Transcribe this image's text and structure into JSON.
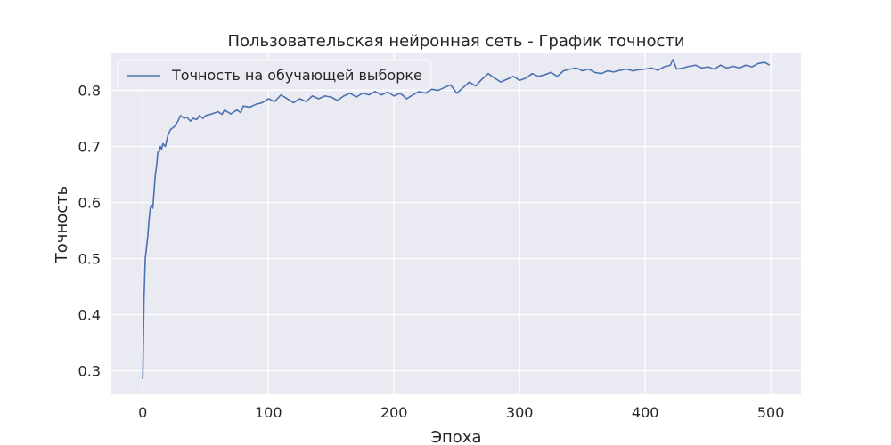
{
  "chart_data": {
    "type": "line",
    "title": "Пользовательская нейронная сеть - График точности",
    "xlabel": "Эпоха",
    "ylabel": "Точность",
    "xlim": [
      -25,
      524
    ],
    "ylim": [
      0.258,
      0.866
    ],
    "xticks": [
      0,
      100,
      200,
      300,
      400,
      500
    ],
    "yticks": [
      0.3,
      0.4,
      0.5,
      0.6,
      0.7,
      0.8
    ],
    "xtick_labels": [
      "0",
      "100",
      "200",
      "300",
      "400",
      "500"
    ],
    "ytick_labels": [
      "0.3",
      "0.4",
      "0.5",
      "0.6",
      "0.7",
      "0.8"
    ],
    "grid": true,
    "legend_position": "top-left",
    "background": "#eaeaf2",
    "grid_color": "#ffffff",
    "series": [
      {
        "name": "Точность на обучающей выборке",
        "color": "#4c72b0",
        "x": [
          0,
          1,
          2,
          3,
          4,
          5,
          6,
          7,
          8,
          9,
          10,
          11,
          12,
          13,
          14,
          15,
          16,
          18,
          20,
          22,
          25,
          28,
          30,
          33,
          35,
          38,
          40,
          43,
          45,
          48,
          50,
          55,
          60,
          63,
          65,
          70,
          75,
          78,
          80,
          85,
          90,
          95,
          100,
          105,
          110,
          115,
          120,
          125,
          130,
          135,
          140,
          145,
          150,
          155,
          160,
          165,
          170,
          175,
          180,
          185,
          190,
          195,
          200,
          205,
          210,
          215,
          220,
          225,
          230,
          235,
          240,
          245,
          250,
          255,
          260,
          265,
          270,
          275,
          280,
          285,
          290,
          295,
          300,
          305,
          310,
          315,
          320,
          325,
          330,
          335,
          340,
          345,
          350,
          355,
          360,
          365,
          370,
          375,
          380,
          385,
          390,
          395,
          400,
          405,
          410,
          415,
          420,
          422,
          425,
          430,
          435,
          440,
          445,
          450,
          455,
          460,
          465,
          470,
          475,
          480,
          485,
          490,
          495,
          499
        ],
        "values": [
          0.285,
          0.43,
          0.5,
          0.52,
          0.54,
          0.57,
          0.59,
          0.595,
          0.59,
          0.62,
          0.65,
          0.665,
          0.69,
          0.69,
          0.7,
          0.695,
          0.705,
          0.7,
          0.72,
          0.73,
          0.735,
          0.745,
          0.755,
          0.75,
          0.752,
          0.745,
          0.75,
          0.748,
          0.755,
          0.75,
          0.755,
          0.758,
          0.762,
          0.757,
          0.765,
          0.758,
          0.765,
          0.76,
          0.772,
          0.77,
          0.775,
          0.778,
          0.785,
          0.78,
          0.792,
          0.785,
          0.778,
          0.785,
          0.78,
          0.79,
          0.785,
          0.79,
          0.788,
          0.782,
          0.79,
          0.795,
          0.788,
          0.795,
          0.792,
          0.798,
          0.792,
          0.797,
          0.79,
          0.795,
          0.785,
          0.792,
          0.798,
          0.795,
          0.802,
          0.8,
          0.805,
          0.81,
          0.795,
          0.805,
          0.815,
          0.808,
          0.82,
          0.83,
          0.822,
          0.815,
          0.82,
          0.825,
          0.818,
          0.822,
          0.83,
          0.825,
          0.828,
          0.832,
          0.825,
          0.835,
          0.838,
          0.84,
          0.835,
          0.838,
          0.832,
          0.83,
          0.835,
          0.833,
          0.836,
          0.838,
          0.835,
          0.837,
          0.838,
          0.84,
          0.836,
          0.842,
          0.845,
          0.855,
          0.838,
          0.84,
          0.843,
          0.845,
          0.84,
          0.842,
          0.838,
          0.845,
          0.84,
          0.843,
          0.84,
          0.845,
          0.842,
          0.848,
          0.85,
          0.845
        ]
      }
    ]
  }
}
